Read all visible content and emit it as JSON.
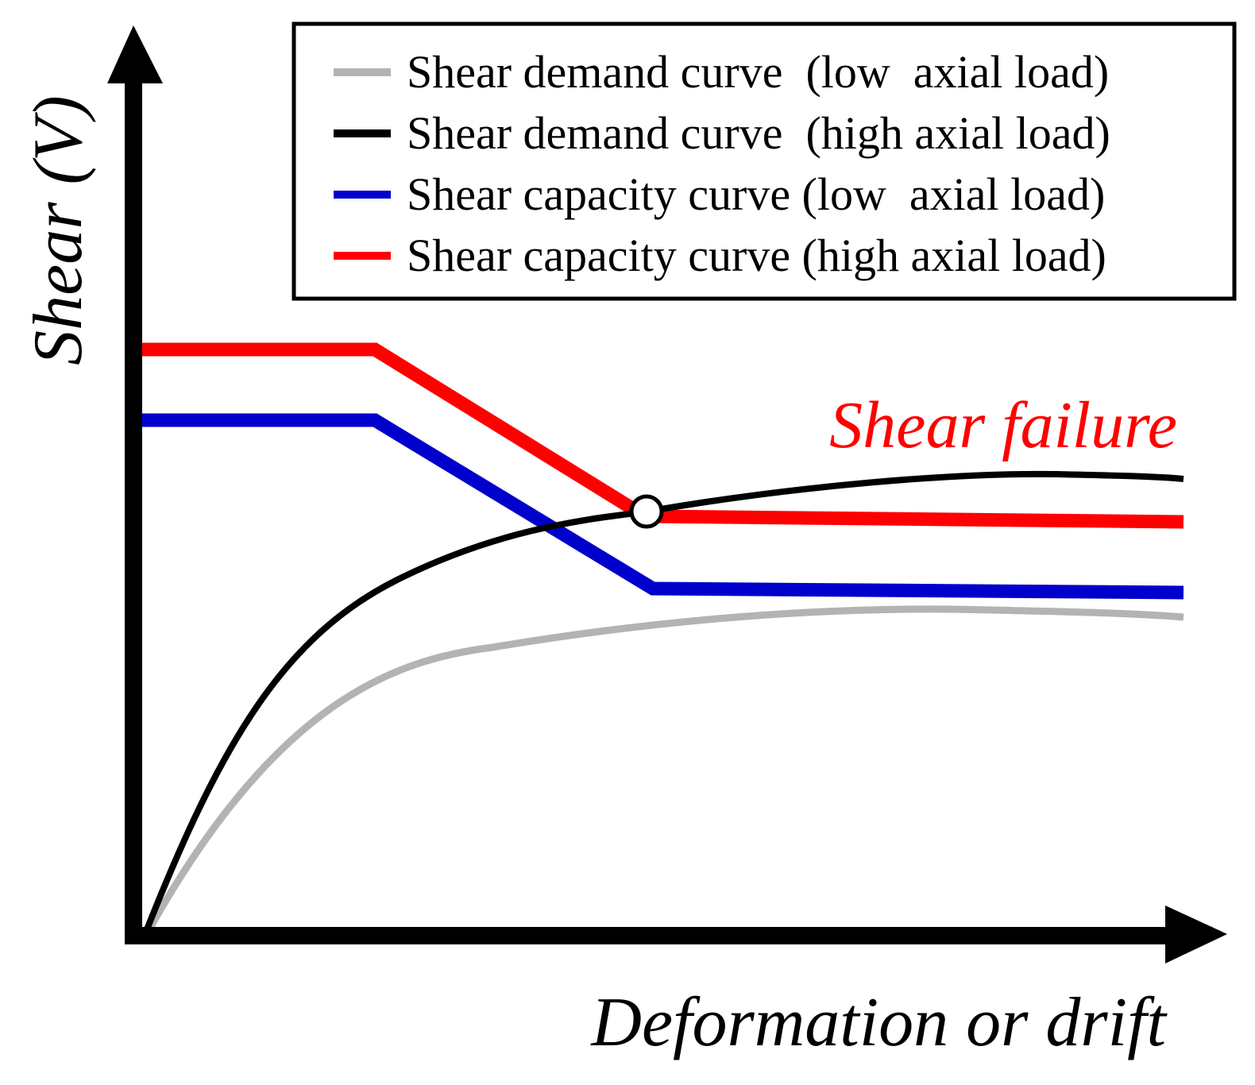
{
  "diagram": {
    "y_axis_label": "Shear (V)",
    "x_axis_label": "Deformation or drift",
    "annotation": {
      "text": "Shear failure",
      "color": "#ff0000"
    },
    "legend": [
      {
        "label": "Shear demand curve  (low  axial load)",
        "color": "#b3b3b3"
      },
      {
        "label": "Shear demand curve  (high axial load)",
        "color": "#000000"
      },
      {
        "label": "Shear capacity curve (low  axial load)",
        "color": "#0000cc"
      },
      {
        "label": "Shear capacity curve (high axial load)",
        "color": "#ff0000"
      }
    ],
    "colors": {
      "axis": "#000000",
      "demand_low": "#b3b3b3",
      "demand_high": "#000000",
      "capacity_low": "#0000cc",
      "capacity_high": "#ff0000",
      "failure_marker_fill": "#ffffff",
      "failure_marker_stroke": "#000000"
    }
  }
}
